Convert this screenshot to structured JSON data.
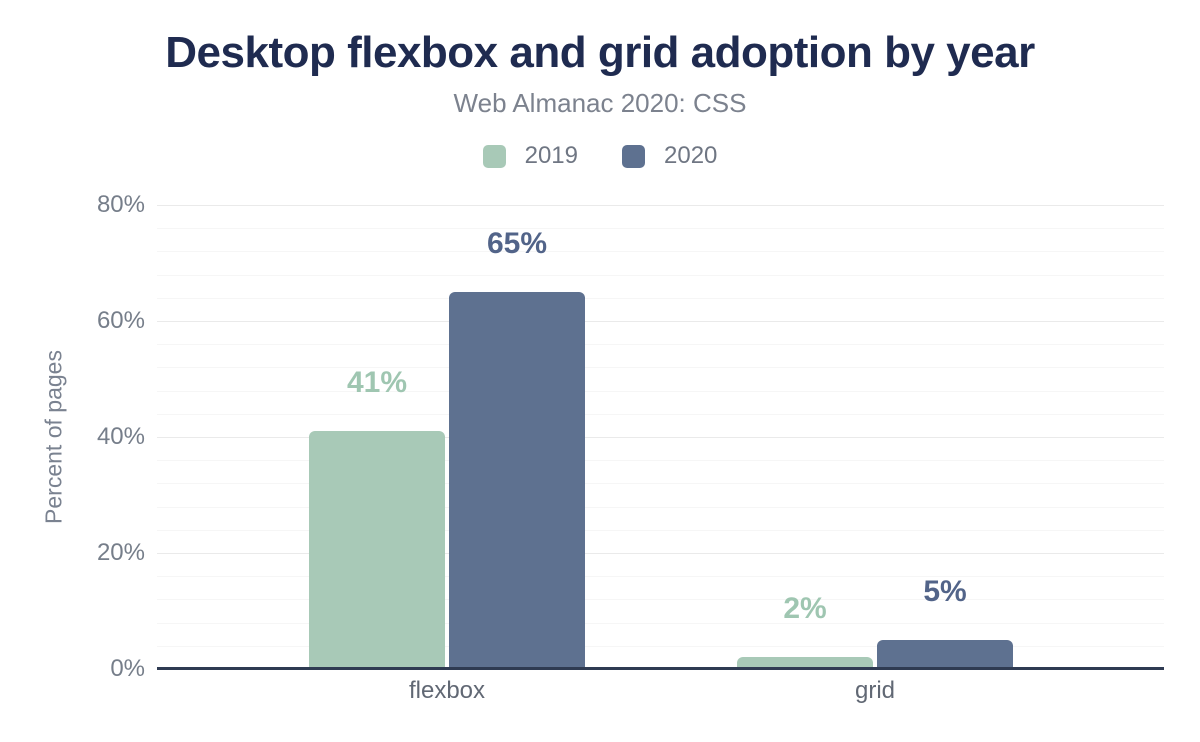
{
  "header": {
    "title": "Desktop flexbox and grid adoption by year",
    "subtitle": "Web Almanac 2020: CSS"
  },
  "chart_data": {
    "type": "bar",
    "title": "Desktop flexbox and grid adoption by year",
    "subtitle": "Web Almanac 2020: CSS",
    "categories": [
      "flexbox",
      "grid"
    ],
    "series": [
      {
        "name": "2019",
        "color": "#a8c9b7",
        "label_color": "#9fc6b1",
        "values": [
          41,
          2
        ],
        "data_labels": [
          "41%",
          "2%"
        ]
      },
      {
        "name": "2020",
        "color": "#5e7190",
        "label_color": "#526489",
        "values": [
          65,
          5
        ],
        "data_labels": [
          "65%",
          "5%"
        ]
      }
    ],
    "xlabel": "",
    "ylabel": "Percent of pages",
    "ylim": [
      0,
      80
    ],
    "yticks": [
      0,
      20,
      40,
      60,
      80
    ],
    "ytick_labels": [
      "0%",
      "20%",
      "40%",
      "60%",
      "80%"
    ],
    "grid": true,
    "minor_grid": true,
    "legend_position": "top",
    "colors": {
      "title": "#1f2b50",
      "subtitle": "#7c828e",
      "axis_line": "#2f3b52",
      "tick_text": "#767e8a"
    }
  }
}
